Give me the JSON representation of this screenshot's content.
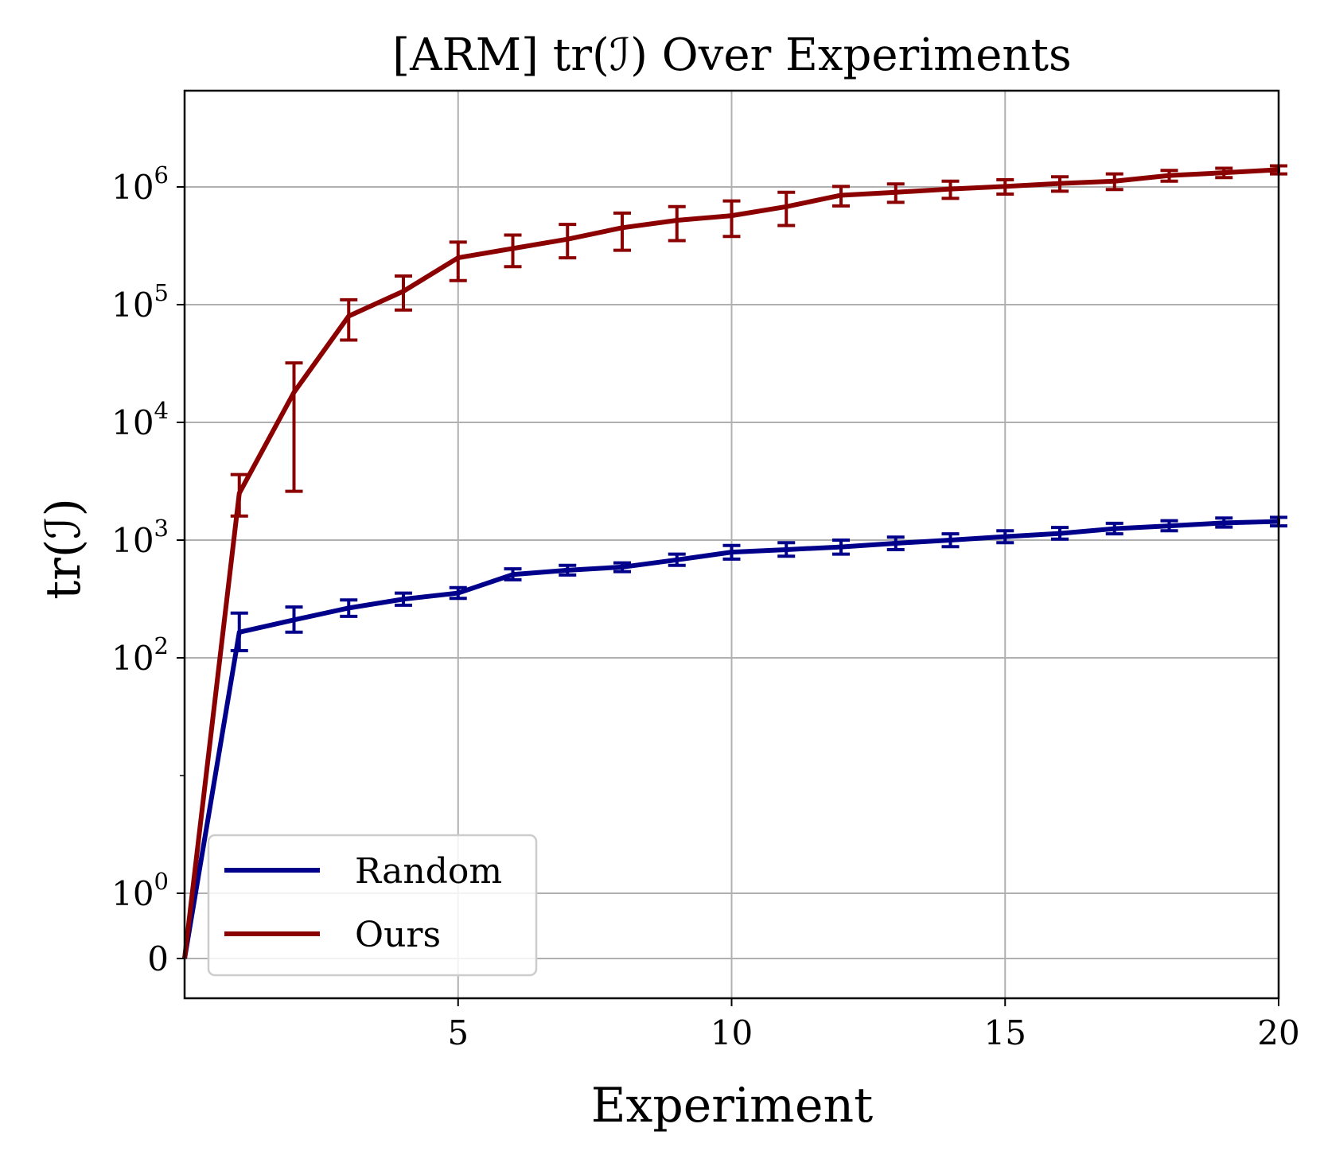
{
  "chart_data": {
    "type": "line",
    "title": "[ARM] tr(ℐ) Over Experiments",
    "xlabel": "Experiment",
    "ylabel": "tr(ℐ)",
    "xlim": [
      0,
      20
    ],
    "yscale": "symlog",
    "grid": true,
    "legend_position": "lower-left",
    "x_ticks": [
      {
        "value": 5,
        "label": "5"
      },
      {
        "value": 10,
        "label": "10"
      },
      {
        "value": 15,
        "label": "15"
      },
      {
        "value": 20,
        "label": "20"
      }
    ],
    "y_ticks": [
      {
        "value": 0,
        "base": "0",
        "exp": ""
      },
      {
        "value": 1,
        "base": "10",
        "exp": "0"
      },
      {
        "value": 100,
        "base": "10",
        "exp": "2"
      },
      {
        "value": 1000,
        "base": "10",
        "exp": "3"
      },
      {
        "value": 10000,
        "base": "10",
        "exp": "4"
      },
      {
        "value": 100000,
        "base": "10",
        "exp": "5"
      },
      {
        "value": 1000000,
        "base": "10",
        "exp": "6"
      }
    ],
    "x": [
      0,
      1,
      2,
      3,
      4,
      5,
      6,
      7,
      8,
      9,
      10,
      11,
      12,
      13,
      14,
      15,
      16,
      17,
      18,
      19,
      20
    ],
    "series": [
      {
        "name": "Random",
        "color": "#00008b",
        "values": [
          0,
          165,
          210,
          265,
          315,
          355,
          510,
          555,
          590,
          680,
          790,
          830,
          875,
          940,
          1000,
          1070,
          1140,
          1250,
          1320,
          1400,
          1440
        ],
        "err_low": [
          0,
          115,
          165,
          225,
          280,
          320,
          460,
          505,
          540,
          610,
          690,
          730,
          760,
          830,
          880,
          950,
          1020,
          1130,
          1200,
          1290,
          1320
        ],
        "err_high": [
          0,
          240,
          270,
          310,
          355,
          395,
          570,
          610,
          640,
          760,
          900,
          950,
          1000,
          1060,
          1130,
          1200,
          1280,
          1390,
          1460,
          1540,
          1560
        ]
      },
      {
        "name": "Ours",
        "color": "#8b0000",
        "values": [
          0,
          2500,
          18000,
          80000,
          130000,
          250000,
          300000,
          360000,
          450000,
          520000,
          570000,
          680000,
          850000,
          900000,
          960000,
          1010000,
          1070000,
          1120000,
          1250000,
          1320000,
          1400000
        ],
        "err_low": [
          0,
          1600,
          2600,
          50000,
          90000,
          160000,
          210000,
          250000,
          290000,
          350000,
          380000,
          470000,
          690000,
          740000,
          800000,
          870000,
          920000,
          950000,
          1120000,
          1200000,
          1290000
        ],
        "err_high": [
          0,
          3600,
          32000,
          110000,
          175000,
          340000,
          390000,
          480000,
          600000,
          680000,
          760000,
          900000,
          1010000,
          1060000,
          1120000,
          1150000,
          1220000,
          1290000,
          1380000,
          1440000,
          1510000
        ]
      }
    ]
  }
}
